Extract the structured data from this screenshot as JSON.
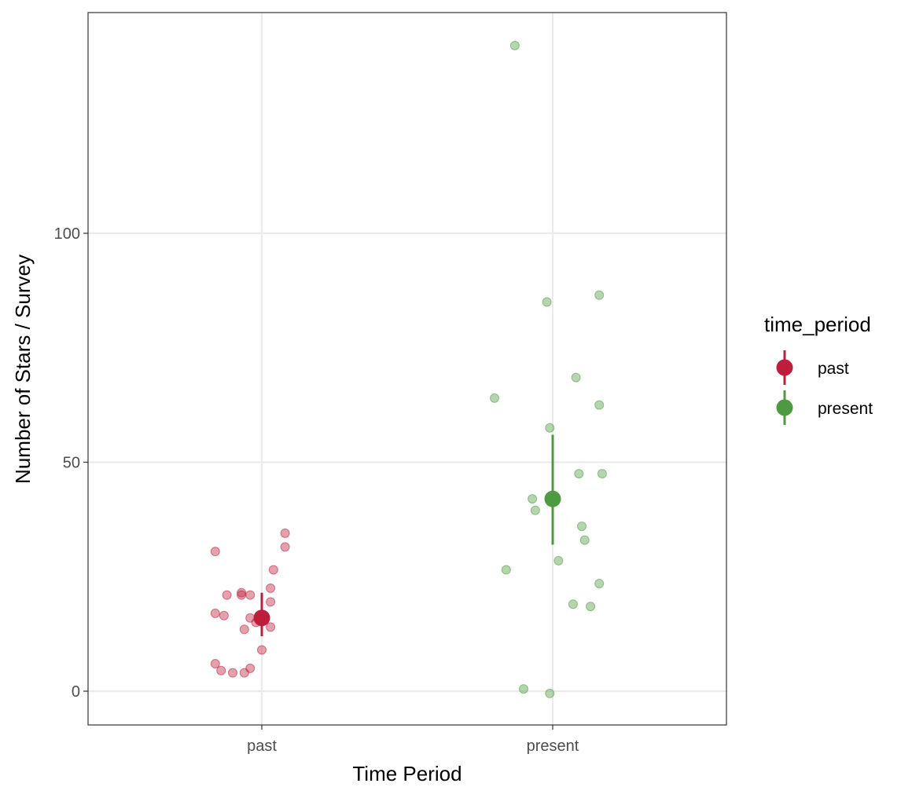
{
  "chart_data": {
    "type": "scatter",
    "xlabel": "Time Period",
    "ylabel": "Number of Stars / Survey",
    "categories": [
      "past",
      "present"
    ],
    "yticks": [
      0,
      50,
      100
    ],
    "ylim": [
      -7.5,
      148
    ],
    "grid": true,
    "legend": {
      "title": "time_period",
      "position": "right",
      "entries": [
        "past",
        "present"
      ]
    },
    "series": [
      {
        "name": "past",
        "color": "#be1e3c",
        "points": [
          {
            "x": -0.16,
            "y": 30.5
          },
          {
            "x": 0.08,
            "y": 34.5
          },
          {
            "x": 0.08,
            "y": 31.5
          },
          {
            "x": 0.04,
            "y": 26.5
          },
          {
            "x": 0.03,
            "y": 19.5
          },
          {
            "x": 0.03,
            "y": 22.5
          },
          {
            "x": -0.12,
            "y": 21.0
          },
          {
            "x": -0.07,
            "y": 21.5
          },
          {
            "x": -0.07,
            "y": 21.0
          },
          {
            "x": -0.04,
            "y": 21.0
          },
          {
            "x": -0.16,
            "y": 17.0
          },
          {
            "x": -0.13,
            "y": 16.5
          },
          {
            "x": -0.04,
            "y": 16.0
          },
          {
            "x": 0.01,
            "y": 16.0
          },
          {
            "x": -0.02,
            "y": 15.0
          },
          {
            "x": -0.06,
            "y": 13.5
          },
          {
            "x": 0.03,
            "y": 14.0
          },
          {
            "x": 0.0,
            "y": 9.0
          },
          {
            "x": -0.16,
            "y": 6.0
          },
          {
            "x": -0.14,
            "y": 4.5
          },
          {
            "x": -0.04,
            "y": 5.0
          },
          {
            "x": -0.1,
            "y": 4.0
          },
          {
            "x": -0.06,
            "y": 4.0
          }
        ],
        "mean": 16.0,
        "ci": [
          12.0,
          21.5
        ]
      },
      {
        "name": "present",
        "color": "#4e9a41",
        "points": [
          {
            "x": -0.13,
            "y": 141.0
          },
          {
            "x": -0.02,
            "y": 85.0
          },
          {
            "x": 0.16,
            "y": 86.5
          },
          {
            "x": -0.2,
            "y": 64.0
          },
          {
            "x": 0.08,
            "y": 68.5
          },
          {
            "x": 0.16,
            "y": 62.5
          },
          {
            "x": -0.01,
            "y": 57.5
          },
          {
            "x": 0.09,
            "y": 47.5
          },
          {
            "x": 0.17,
            "y": 47.5
          },
          {
            "x": -0.07,
            "y": 42.0
          },
          {
            "x": -0.06,
            "y": 39.5
          },
          {
            "x": 0.1,
            "y": 36.0
          },
          {
            "x": 0.11,
            "y": 33.0
          },
          {
            "x": 0.02,
            "y": 28.5
          },
          {
            "x": -0.16,
            "y": 26.5
          },
          {
            "x": 0.16,
            "y": 23.5
          },
          {
            "x": 0.07,
            "y": 19.0
          },
          {
            "x": 0.13,
            "y": 18.5
          },
          {
            "x": -0.1,
            "y": 0.5
          },
          {
            "x": -0.01,
            "y": -0.5
          }
        ],
        "mean": 42.0,
        "ci": [
          32.0,
          56.0
        ]
      }
    ]
  }
}
